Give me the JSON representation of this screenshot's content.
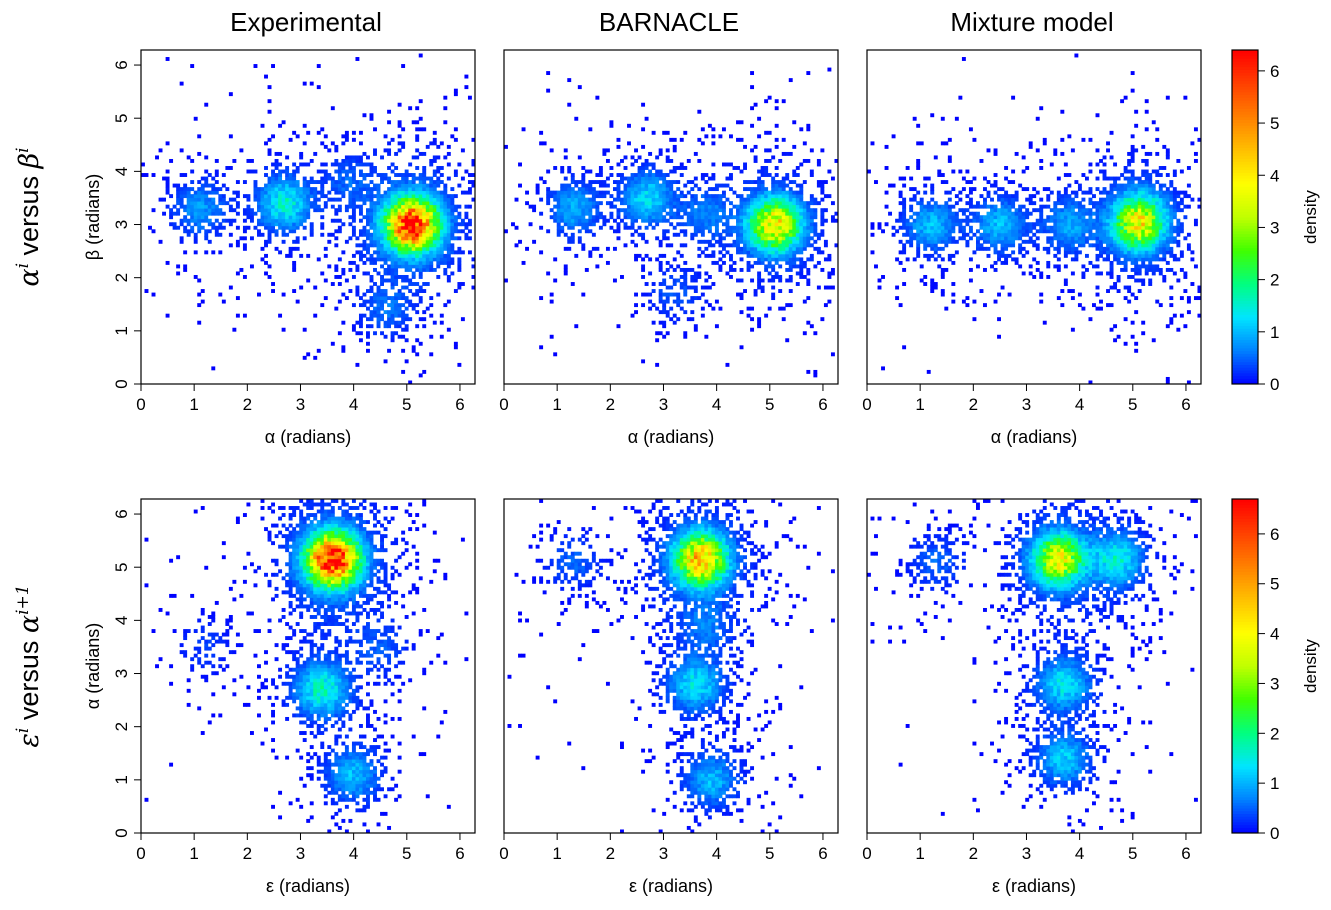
{
  "column_titles": [
    "Experimental",
    "BARNACLE",
    "Mixture model"
  ],
  "row_labels": [
    {
      "base": "α",
      "sup1": "i",
      "mid": " versus ",
      "base2": "β",
      "sup2": "i"
    },
    {
      "base": "ε",
      "sup1": "i",
      "mid": " versus ",
      "base2": "α",
      "sup2": "i+1"
    }
  ],
  "colors": {
    "density_ramp": [
      "#0000ff",
      "#0080ff",
      "#00e5ff",
      "#00ff80",
      "#40ff00",
      "#c0ff00",
      "#ffff00",
      "#ffc000",
      "#ff8000",
      "#ff4000",
      "#ff0000"
    ],
    "axis": "#000000"
  },
  "chart_data": [
    {
      "type": "heatmap",
      "row": 0,
      "column_title": "Experimental",
      "xlabel": "α (radians)",
      "ylabel": "β (radians)",
      "xlim": [
        0,
        6.283
      ],
      "ylim": [
        0,
        6.283
      ],
      "xticks": [
        0,
        1,
        2,
        3,
        4,
        5,
        6
      ],
      "yticks": [
        0,
        1,
        2,
        3,
        4,
        5,
        6
      ],
      "clusters": [
        {
          "x": 5.1,
          "y": 3.0,
          "peak_density": 6.3
        },
        {
          "x": 2.7,
          "y": 3.4,
          "peak_density": 1.5
        },
        {
          "x": 1.1,
          "y": 3.3,
          "peak_density": 0.8
        },
        {
          "x": 4.6,
          "y": 1.4,
          "peak_density": 0.5
        },
        {
          "x": 3.9,
          "y": 3.8,
          "peak_density": 0.4
        }
      ]
    },
    {
      "type": "heatmap",
      "row": 0,
      "column_title": "BARNACLE",
      "xlabel": "α (radians)",
      "ylabel": "",
      "xlim": [
        0,
        6.283
      ],
      "ylim": [
        0,
        6.283
      ],
      "xticks": [
        0,
        1,
        2,
        3,
        4,
        5,
        6
      ],
      "yticks": [],
      "clusters": [
        {
          "x": 5.1,
          "y": 3.0,
          "peak_density": 4.0
        },
        {
          "x": 2.7,
          "y": 3.5,
          "peak_density": 1.2
        },
        {
          "x": 1.3,
          "y": 3.3,
          "peak_density": 0.9
        },
        {
          "x": 3.8,
          "y": 3.2,
          "peak_density": 0.6
        },
        {
          "x": 3.2,
          "y": 1.7,
          "peak_density": 0.4
        }
      ]
    },
    {
      "type": "heatmap",
      "row": 0,
      "column_title": "Mixture model",
      "xlabel": "α (radians)",
      "ylabel": "",
      "xlim": [
        0,
        6.283
      ],
      "ylim": [
        0,
        6.283
      ],
      "xticks": [
        0,
        1,
        2,
        3,
        4,
        5,
        6
      ],
      "yticks": [],
      "clusters": [
        {
          "x": 5.1,
          "y": 3.0,
          "peak_density": 3.0
        },
        {
          "x": 2.5,
          "y": 3.0,
          "peak_density": 1.0
        },
        {
          "x": 1.2,
          "y": 3.0,
          "peak_density": 1.0
        },
        {
          "x": 5.15,
          "y": 3.2,
          "peak_density": 1.0
        },
        {
          "x": 3.8,
          "y": 3.0,
          "peak_density": 0.8
        }
      ]
    },
    {
      "type": "heatmap",
      "row": 1,
      "column_title": "Experimental",
      "xlabel": "ε (radians)",
      "ylabel": "α (radians)",
      "xlim": [
        0,
        6.283
      ],
      "ylim": [
        0,
        6.283
      ],
      "xticks": [
        0,
        1,
        2,
        3,
        4,
        5,
        6
      ],
      "yticks": [
        0,
        1,
        2,
        3,
        4,
        5,
        6
      ],
      "clusters": [
        {
          "x": 3.6,
          "y": 5.15,
          "peak_density": 6.5
        },
        {
          "x": 3.4,
          "y": 2.7,
          "peak_density": 1.6
        },
        {
          "x": 4.0,
          "y": 1.1,
          "peak_density": 1.0
        },
        {
          "x": 1.2,
          "y": 3.5,
          "peak_density": 0.3
        },
        {
          "x": 4.5,
          "y": 3.5,
          "peak_density": 0.4
        }
      ]
    },
    {
      "type": "heatmap",
      "row": 1,
      "column_title": "BARNACLE",
      "xlabel": "ε (radians)",
      "ylabel": "",
      "xlim": [
        0,
        6.283
      ],
      "ylim": [
        0,
        6.283
      ],
      "xticks": [
        0,
        1,
        2,
        3,
        4,
        5,
        6
      ],
      "yticks": [],
      "clusters": [
        {
          "x": 3.7,
          "y": 5.15,
          "peak_density": 4.5
        },
        {
          "x": 3.6,
          "y": 2.8,
          "peak_density": 1.3
        },
        {
          "x": 3.9,
          "y": 1.0,
          "peak_density": 1.0
        },
        {
          "x": 1.3,
          "y": 5.1,
          "peak_density": 0.5
        },
        {
          "x": 3.8,
          "y": 3.9,
          "peak_density": 0.5
        }
      ]
    },
    {
      "type": "heatmap",
      "row": 1,
      "column_title": "Mixture model",
      "xlabel": "ε (radians)",
      "ylabel": "",
      "xlim": [
        0,
        6.283
      ],
      "ylim": [
        0,
        6.283
      ],
      "xticks": [
        0,
        1,
        2,
        3,
        4,
        5,
        6
      ],
      "yticks": [],
      "clusters": [
        {
          "x": 3.6,
          "y": 5.15,
          "peak_density": 3.6
        },
        {
          "x": 4.7,
          "y": 5.15,
          "peak_density": 1.4
        },
        {
          "x": 3.7,
          "y": 2.8,
          "peak_density": 1.3
        },
        {
          "x": 3.7,
          "y": 1.4,
          "peak_density": 1.1
        },
        {
          "x": 1.3,
          "y": 5.1,
          "peak_density": 0.5
        }
      ]
    }
  ],
  "colorbars": [
    {
      "label": "density",
      "ticks": [
        0,
        1,
        2,
        3,
        4,
        5,
        6
      ],
      "range": [
        0,
        6.4
      ]
    },
    {
      "label": "density",
      "ticks": [
        0,
        1,
        2,
        3,
        4,
        5,
        6
      ],
      "range": [
        0,
        6.7
      ]
    }
  ]
}
